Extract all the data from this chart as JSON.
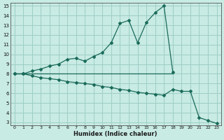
{
  "xlabel": "Humidex (Indice chaleur)",
  "xlim": [
    -0.5,
    23.5
  ],
  "ylim": [
    3,
    15
  ],
  "yticks": [
    3,
    4,
    5,
    6,
    7,
    8,
    9,
    10,
    11,
    12,
    13,
    14,
    15
  ],
  "xticks": [
    0,
    1,
    2,
    3,
    4,
    5,
    6,
    7,
    8,
    9,
    10,
    11,
    12,
    13,
    14,
    15,
    16,
    17,
    18,
    19,
    20,
    21,
    22,
    23
  ],
  "background_color": "#c8ebe4",
  "grid_color": "#9dcec5",
  "line_color": "#1a6b5a",
  "line1_x": [
    0,
    1,
    2,
    3,
    4,
    5,
    6,
    7,
    8,
    9,
    10,
    11,
    12,
    13,
    14,
    15,
    16,
    17,
    18
  ],
  "line1_y": [
    8.0,
    8.0,
    8.3,
    8.5,
    8.8,
    9.0,
    9.5,
    9.6,
    9.3,
    9.8,
    10.2,
    11.2,
    13.2,
    13.5,
    11.2,
    13.3,
    14.3,
    15.0,
    8.2
  ],
  "line2_x": [
    0,
    18
  ],
  "line2_y": [
    8.0,
    8.0
  ],
  "line3_x": [
    0,
    1,
    2,
    3,
    4,
    5,
    6,
    7,
    8,
    9,
    10,
    11,
    12,
    13,
    14,
    15,
    16,
    17,
    18,
    19,
    20,
    21,
    22,
    23
  ],
  "line3_y": [
    8.0,
    8.0,
    7.8,
    7.6,
    7.5,
    7.4,
    7.2,
    7.1,
    7.0,
    6.9,
    6.7,
    6.6,
    6.4,
    6.3,
    6.1,
    6.0,
    5.9,
    5.8,
    6.4,
    6.2,
    6.2,
    3.5,
    3.2,
    2.9
  ]
}
